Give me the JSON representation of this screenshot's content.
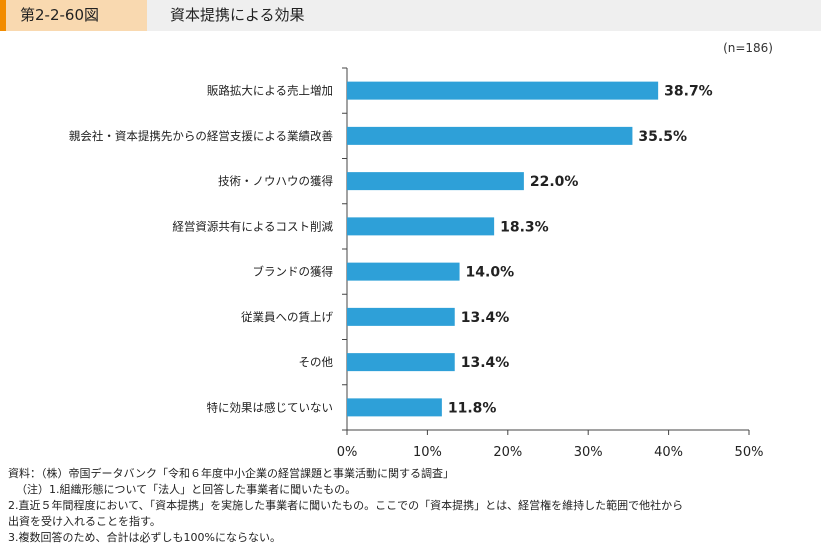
{
  "header": {
    "figure_number": "第2-2-60図",
    "title": "資本提携による効果"
  },
  "chart_data": {
    "type": "bar",
    "orientation": "horizontal",
    "sample_size": "(n=186)",
    "categories": [
      "販路拡大による売上増加",
      "親会社・資本提携先からの経営支援による業績改善",
      "技術・ノウハウの獲得",
      "経営資源共有によるコスト削減",
      "ブランドの獲得",
      "従業員への賃上げ",
      "その他",
      "特に効果は感じていない"
    ],
    "values": [
      38.7,
      35.5,
      22.0,
      18.3,
      14.0,
      13.4,
      13.4,
      11.8
    ],
    "value_labels": [
      "38.7%",
      "35.5%",
      "22.0%",
      "18.3%",
      "14.0%",
      "13.4%",
      "13.4%",
      "11.8%"
    ],
    "xlim": [
      0,
      50
    ],
    "ticks": [
      0,
      10,
      20,
      30,
      40,
      50
    ],
    "tick_labels": [
      "0%",
      "10%",
      "20%",
      "30%",
      "40%",
      "50%"
    ],
    "bar_color": "#2ea0d8",
    "grid": false
  },
  "notes": [
    "資料：（株）帝国データバンク「令和６年度中小企業の経営課題と事業活動に関する調査」",
    "（注）1.組織形態について「法人」と回答した事業者に聞いたもの。",
    "2.直近５年間程度において、「資本提携」を実施した事業者に聞いたもの。ここでの「資本提携」とは、経営権を維持した範囲で他社から",
    "出資を受け入れることを指す。",
    "3.複数回答のため、合計は必ずしも100%にならない。"
  ]
}
